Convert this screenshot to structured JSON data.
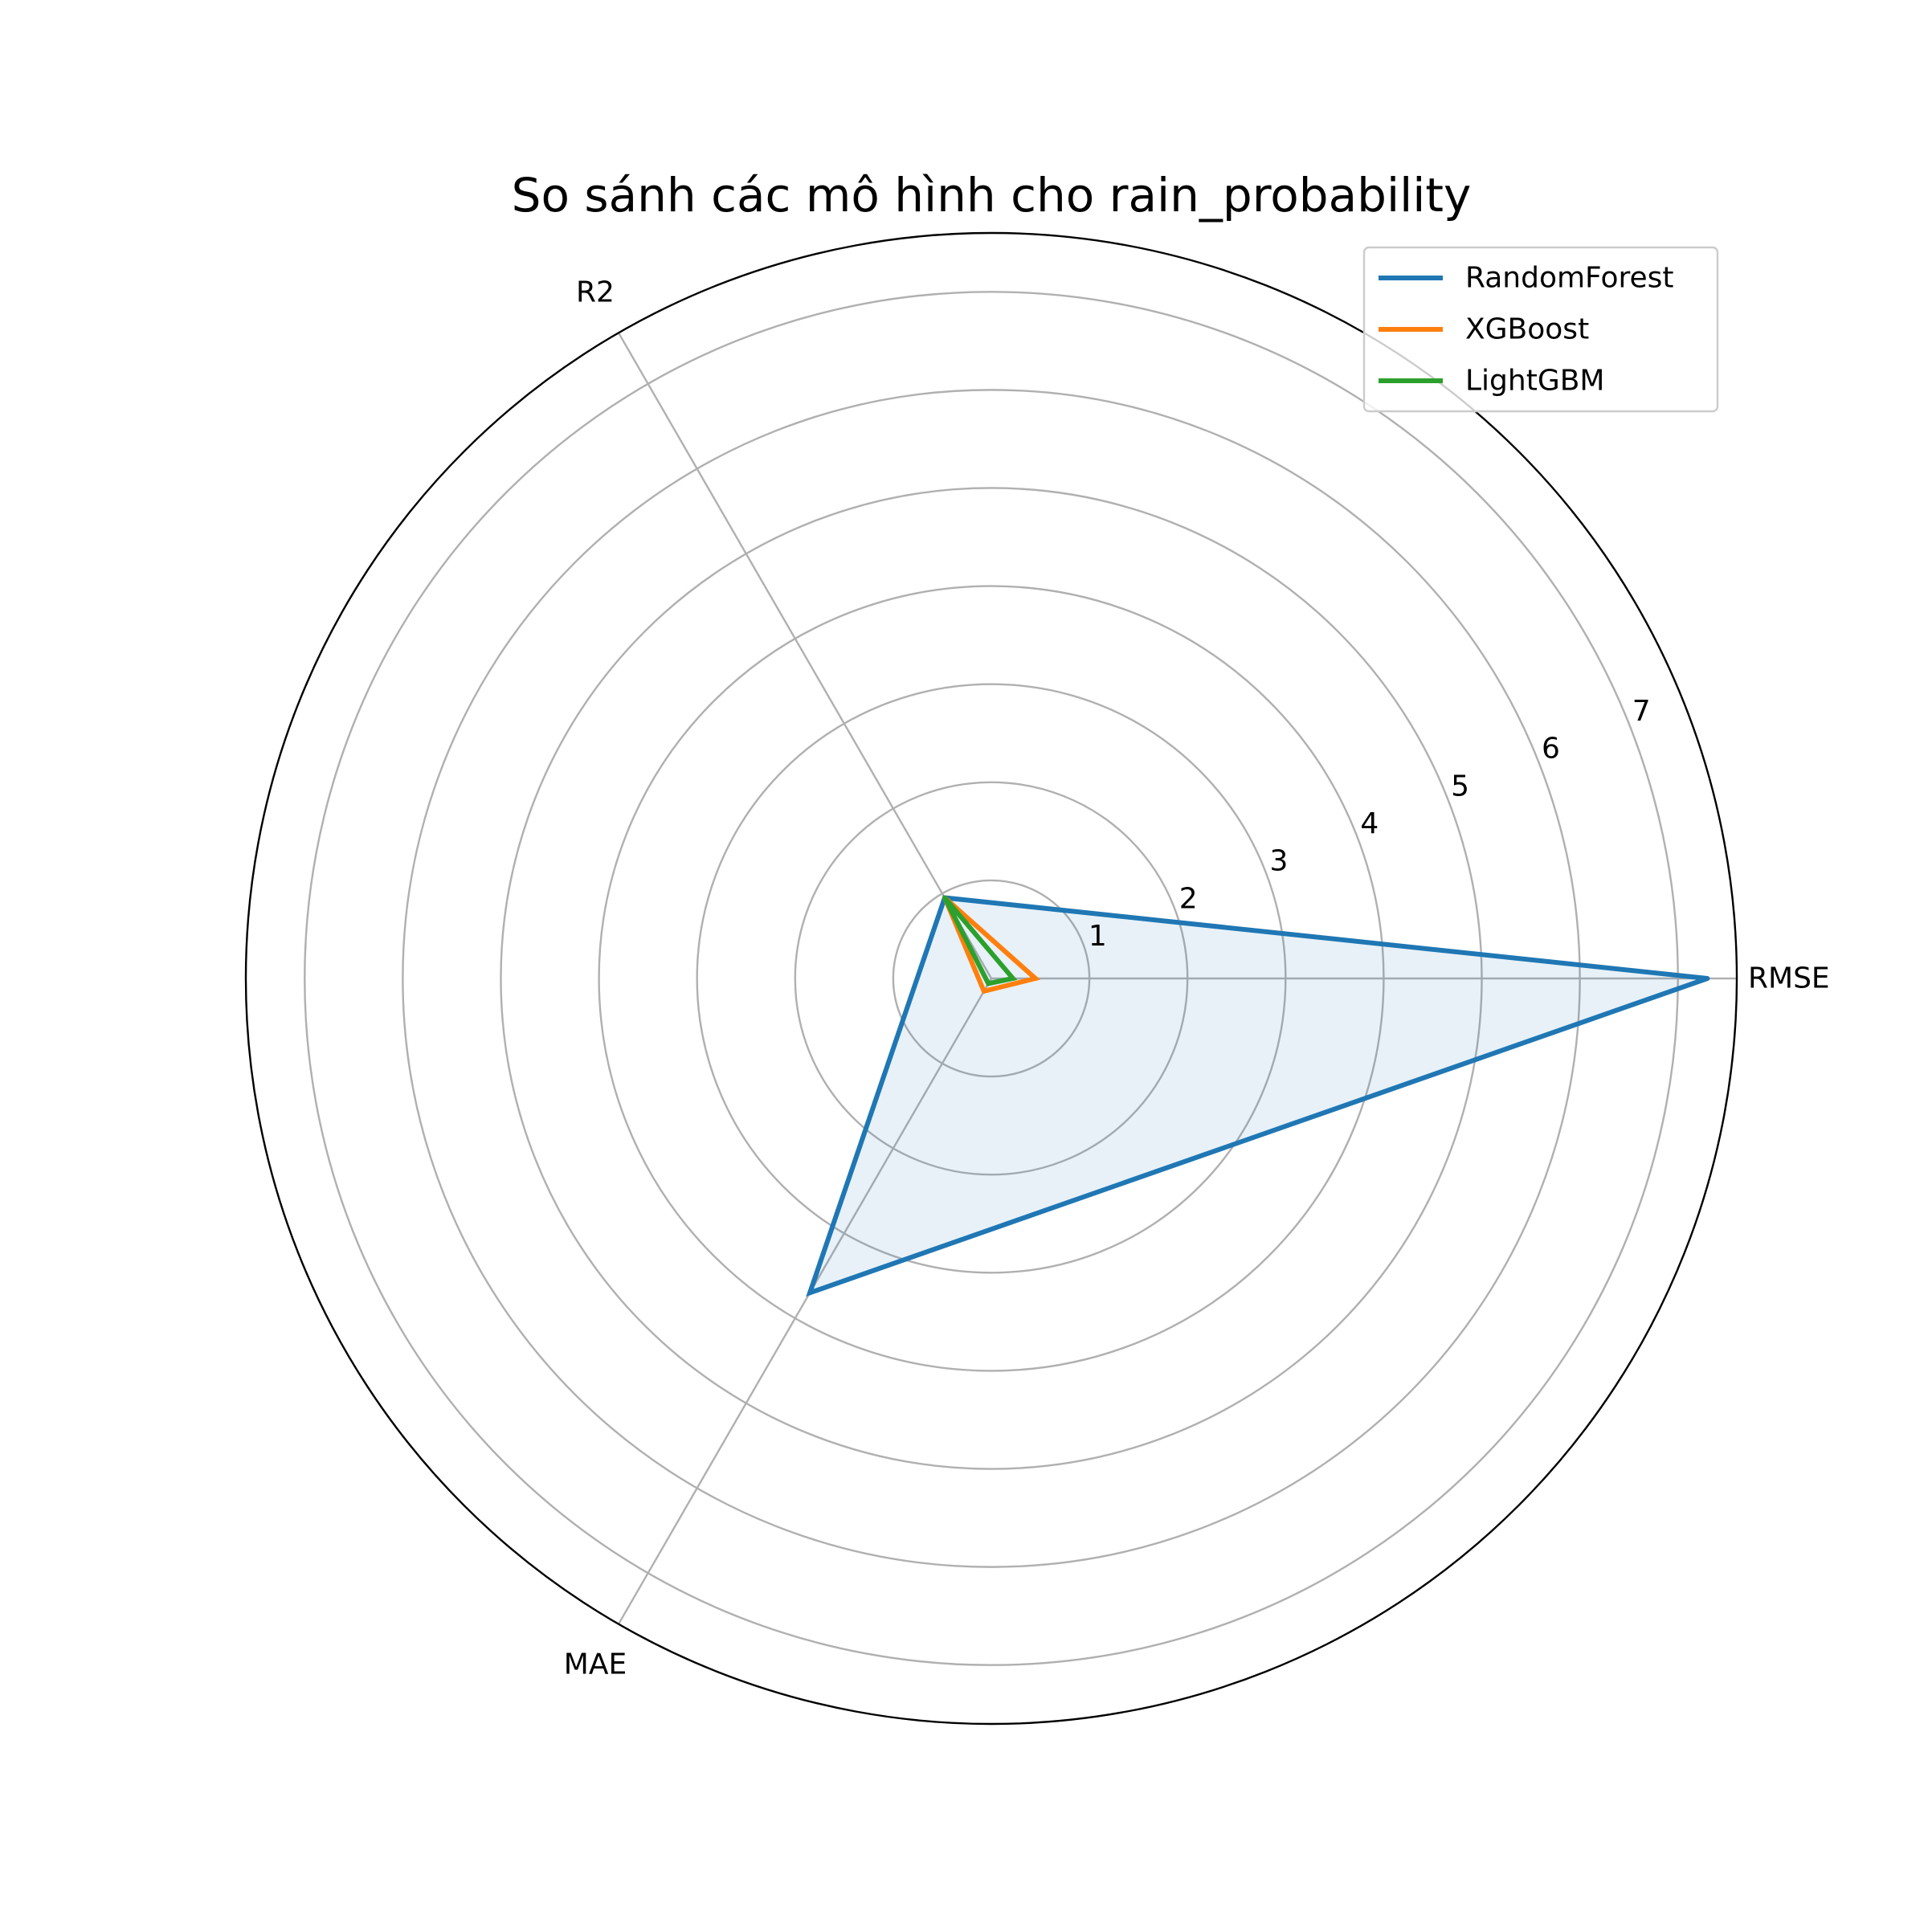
{
  "chart_data": {
    "type": "radar",
    "title": "So sánh các mô hình cho rain_probability",
    "axes": [
      "RMSE",
      "R2",
      "MAE"
    ],
    "rlim": [
      0,
      7.6
    ],
    "rticks": [
      1,
      2,
      3,
      4,
      5,
      6,
      7
    ],
    "grid": true,
    "legend_position": "top-right",
    "series": [
      {
        "name": "RandomForest",
        "color": "#1f77b4",
        "values": [
          7.3,
          0.95,
          3.7
        ],
        "filled": true
      },
      {
        "name": "XGBoost",
        "color": "#ff7f0e",
        "values": [
          0.45,
          0.95,
          0.15
        ],
        "filled": false
      },
      {
        "name": "LightGBM",
        "color": "#2ca02c",
        "values": [
          0.22,
          0.95,
          0.06
        ],
        "filled": false
      }
    ]
  }
}
